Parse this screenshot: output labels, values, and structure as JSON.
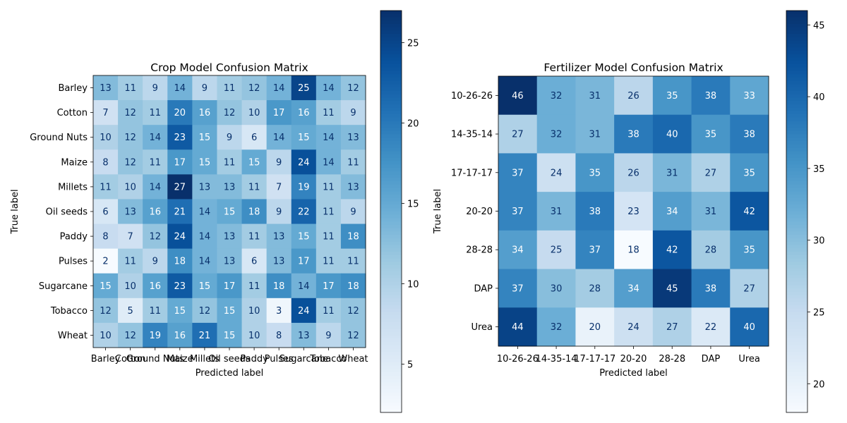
{
  "chart_data": [
    {
      "type": "heatmap",
      "title": "Crop Model Confusion Matrix",
      "xlabel": "Predicted label",
      "ylabel": "True label",
      "categories": [
        "Barley",
        "Cotton",
        "Ground Nuts",
        "Maize",
        "Millets",
        "Oil seeds",
        "Paddy",
        "Pulses",
        "Sugarcane",
        "Tobacco",
        "Wheat"
      ],
      "values": [
        [
          13,
          11,
          9,
          14,
          9,
          11,
          12,
          14,
          25,
          14,
          12
        ],
        [
          7,
          12,
          11,
          20,
          16,
          12,
          10,
          17,
          16,
          11,
          9
        ],
        [
          10,
          12,
          14,
          23,
          15,
          9,
          6,
          14,
          15,
          14,
          13
        ],
        [
          8,
          12,
          11,
          17,
          15,
          11,
          15,
          9,
          24,
          14,
          11
        ],
        [
          11,
          10,
          14,
          27,
          13,
          13,
          11,
          7,
          19,
          11,
          13
        ],
        [
          6,
          13,
          16,
          21,
          14,
          15,
          18,
          9,
          22,
          11,
          9
        ],
        [
          8,
          7,
          12,
          24,
          14,
          13,
          11,
          13,
          15,
          11,
          18
        ],
        [
          2,
          11,
          9,
          18,
          14,
          13,
          6,
          13,
          17,
          11,
          11
        ],
        [
          15,
          10,
          16,
          23,
          15,
          17,
          11,
          18,
          14,
          17,
          18
        ],
        [
          12,
          5,
          11,
          15,
          12,
          15,
          10,
          3,
          24,
          11,
          12
        ],
        [
          10,
          12,
          19,
          16,
          21,
          15,
          10,
          8,
          13,
          9,
          12
        ]
      ],
      "colormap": "Blues",
      "vmin": 2,
      "vmax": 27,
      "colorbar_ticks": [
        5,
        10,
        15,
        20,
        25
      ]
    },
    {
      "type": "heatmap",
      "title": "Fertilizer Model Confusion Matrix",
      "xlabel": "Predicted label",
      "ylabel": "True label",
      "categories": [
        "10-26-26",
        "14-35-14",
        "17-17-17",
        "20-20",
        "28-28",
        "DAP",
        "Urea"
      ],
      "values": [
        [
          46,
          32,
          31,
          26,
          35,
          38,
          33
        ],
        [
          27,
          32,
          31,
          38,
          40,
          35,
          38
        ],
        [
          37,
          24,
          35,
          26,
          31,
          27,
          35
        ],
        [
          37,
          31,
          38,
          23,
          34,
          31,
          42
        ],
        [
          34,
          25,
          37,
          18,
          42,
          28,
          35
        ],
        [
          37,
          30,
          28,
          34,
          45,
          38,
          27
        ],
        [
          44,
          32,
          20,
          24,
          27,
          22,
          40
        ]
      ],
      "colormap": "Blues",
      "vmin": 18,
      "vmax": 46,
      "colorbar_ticks": [
        20,
        25,
        30,
        35,
        40,
        45
      ]
    }
  ]
}
